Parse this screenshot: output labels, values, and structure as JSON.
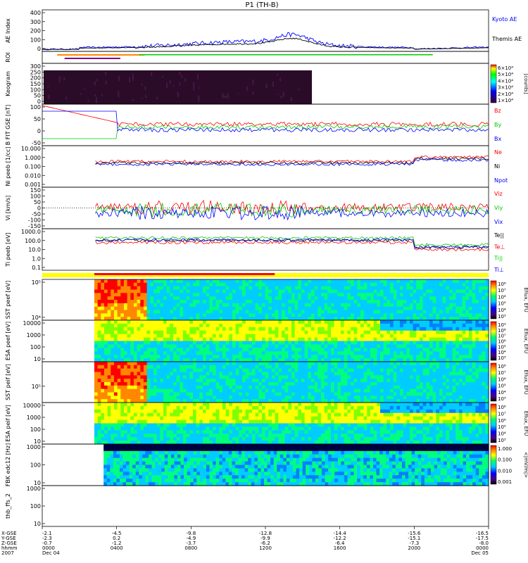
{
  "title": "P1 (TH-B)",
  "colors": {
    "blue": "#0000ff",
    "green": "#00cc00",
    "red": "#ff0000",
    "black": "#000000",
    "yellow": "#ffff00",
    "dark": "#3a0a2a"
  },
  "chart_data": [
    {
      "id": "ae",
      "type": "line",
      "ylabel": "AE Index",
      "ylim": [
        0,
        400
      ],
      "yticks": [
        "400",
        "300",
        "200",
        "100",
        "0"
      ],
      "series": [
        {
          "name": "Kyoto AE",
          "color": "#0000ff"
        },
        {
          "name": "Themis AE",
          "color": "#000000"
        }
      ]
    },
    {
      "id": "roi",
      "type": "bar",
      "ylabel": "ROI"
    },
    {
      "id": "keogram",
      "type": "heatmap",
      "ylabel": "Keogram",
      "ylim": [
        0,
        300
      ],
      "yticks": [
        "300",
        "250",
        "200",
        "150",
        "100",
        "50",
        "0"
      ],
      "colorbar": {
        "ticks": [
          "6×10⁴",
          "5×10⁴",
          "4×10⁴",
          "3×10⁴",
          "2×10⁴",
          "1×10⁴"
        ],
        "label": "[counts]"
      }
    },
    {
      "id": "bfield",
      "type": "line",
      "ylabel": "B FIT GSE [nT]",
      "ylim": [
        -50,
        100
      ],
      "yticks": [
        "100",
        "50",
        "0",
        "-50"
      ],
      "series": [
        {
          "name": "Bz",
          "color": "#ff0000"
        },
        {
          "name": "By",
          "color": "#00cc00"
        },
        {
          "name": "Bx",
          "color": "#0000ff"
        }
      ]
    },
    {
      "id": "density",
      "type": "line",
      "ylabel": "Ni peeb [1/cc]",
      "yticks": [
        "10.000",
        "1.000",
        "0.100",
        "0.010",
        "0.001"
      ],
      "series": [
        {
          "name": "Ne",
          "color": "#ff0000"
        },
        {
          "name": "Ni",
          "color": "#000000"
        },
        {
          "name": "Npot",
          "color": "#0000ff"
        }
      ]
    },
    {
      "id": "velocity",
      "type": "line",
      "ylabel": "Vi [km/s]",
      "ylim": [
        -150,
        150
      ],
      "yticks": [
        "150",
        "100",
        "50",
        "0",
        "-50",
        "-100",
        "-150"
      ],
      "series": [
        {
          "name": "Viz",
          "color": "#ff0000"
        },
        {
          "name": "Viy",
          "color": "#00cc00"
        },
        {
          "name": "Vix",
          "color": "#0000ff"
        }
      ]
    },
    {
      "id": "temp",
      "type": "line",
      "ylabel": "Ti peeb [eV]",
      "yticks": [
        "1000.0",
        "100.0",
        "10.0",
        "1.0",
        "0.1"
      ],
      "series": [
        {
          "name": "Te||",
          "color": "#000000"
        },
        {
          "name": "Te⊥",
          "color": "#ff0000"
        },
        {
          "name": "Ti||",
          "color": "#00cc00"
        },
        {
          "name": "Ti⊥",
          "color": "#0000ff"
        }
      ]
    },
    {
      "id": "sst_e",
      "type": "heatmap",
      "ylabel": "SST peef [eV]",
      "yticks": [
        "10⁵",
        "10⁴"
      ],
      "colorbar": {
        "ticks": [
          "10⁸",
          "10⁷",
          "10⁶",
          "10⁵",
          "10⁴",
          "10³"
        ],
        "label": "Eflux, EFU"
      }
    },
    {
      "id": "esa_e",
      "type": "heatmap",
      "ylabel": "ESA peef [eV]",
      "yticks": [
        "10000",
        "1000",
        "100",
        "10"
      ],
      "colorbar": {
        "ticks": [
          "10⁹",
          "10⁸",
          "10⁷",
          "10⁶",
          "10⁵",
          "10⁴",
          "10³"
        ],
        "label": "Eflux, EFU"
      }
    },
    {
      "id": "sst_i",
      "type": "heatmap",
      "ylabel": "SST peif [eV]",
      "yticks": [
        "10⁵"
      ],
      "colorbar": {
        "ticks": [
          "10⁸",
          "10⁷",
          "10⁶",
          "10⁵",
          "10⁴",
          "10³"
        ],
        "label": "Eflux, EFU"
      }
    },
    {
      "id": "esa_i",
      "type": "heatmap",
      "ylabel": "ESA peif [eV]",
      "yticks": [
        "10000",
        "1000",
        "100",
        "10"
      ],
      "colorbar": {
        "ticks": [
          "10⁸",
          "10⁷",
          "10⁶",
          "10⁵",
          "10⁴",
          "10³"
        ],
        "label": "Eflux, EFU"
      }
    },
    {
      "id": "fbk",
      "type": "heatmap",
      "ylabel": "FBK edc12 [Hz]",
      "yticks": [
        "1000",
        "100",
        "10"
      ],
      "colorbar": {
        "ticks": [
          "1.000",
          "0.100",
          "0.010",
          "0.001"
        ],
        "label": "<|mV/m|>"
      }
    },
    {
      "id": "ffs",
      "type": "heatmap",
      "ylabel": "thb_ffs_2",
      "yticks": [
        "1000",
        "100",
        "10"
      ]
    }
  ],
  "xaxis": {
    "row_labels": [
      "X-GSE",
      "Y-GSE",
      "Z-GSE",
      "hhmm",
      "2007"
    ],
    "columns": [
      [
        "-2.1",
        "-2.3",
        "-0.7",
        "0000",
        "Dec 04"
      ],
      [
        "-4.5",
        "0.2",
        "-1.2",
        "0400",
        ""
      ],
      [
        "-9.8",
        "-4.9",
        "-3.7",
        "0800",
        ""
      ],
      [
        "-12.8",
        "-9.9",
        "-6.2",
        "1200",
        ""
      ],
      [
        "-14.4",
        "-12.2",
        "-6.4",
        "1600",
        ""
      ],
      [
        "-15.6",
        "-15.1",
        "-7.3",
        "2000",
        ""
      ],
      [
        "-16.5",
        "-17.5",
        "-8.0",
        "0000",
        "Dec 05"
      ]
    ],
    "range_hours": [
      0,
      24
    ]
  }
}
